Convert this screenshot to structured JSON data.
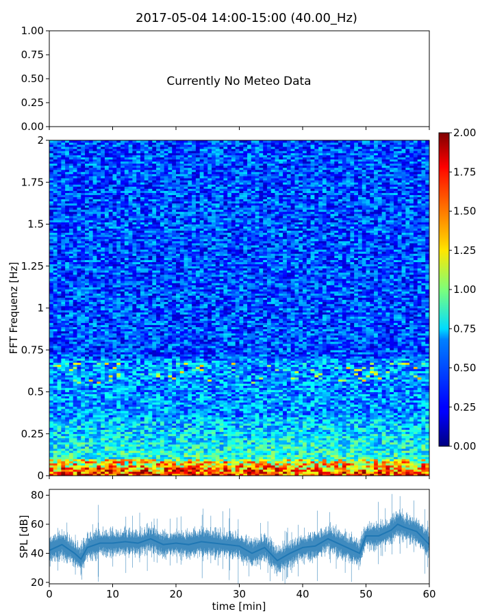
{
  "title": "2017-05-04 14:00-15:00 (40.00_Hz)",
  "chart_data": [
    {
      "type": "line",
      "name": "meteo-panel",
      "message": "Currently No Meteo Data",
      "ylim": [
        0,
        1
      ],
      "yticks": [
        "0.00",
        "0.25",
        "0.50",
        "0.75",
        "1.00"
      ],
      "xlim": [
        0,
        60
      ],
      "xticks": [
        0,
        10,
        20,
        30,
        40,
        50,
        60
      ],
      "show_xtick_labels": false
    },
    {
      "type": "heatmap",
      "name": "spectrogram",
      "ylabel": "FFT Frequenz [Hz]",
      "xlim": [
        0,
        60
      ],
      "ylim": [
        0,
        2
      ],
      "yticks": [
        "0",
        "0.25",
        "0.5",
        "0.75",
        "1",
        "1.25",
        "1.5",
        "1.75",
        "2"
      ],
      "colormap": "jet",
      "colorbar": {
        "range": [
          0,
          2
        ],
        "ticks": [
          "0.00",
          "0.25",
          "0.50",
          "0.75",
          "1.00",
          "1.25",
          "1.50",
          "1.75",
          "2.00"
        ]
      },
      "notes": "high intensity (~1.5-2.0) concentrated below 0.1 Hz across full hour; moderate (~0.7-1.0) between 0.1-0.3 Hz; background ~0.2-0.5 above 0.5 Hz"
    },
    {
      "type": "line",
      "name": "spl",
      "xlabel": "time [min]",
      "ylabel": "SPL [dB]",
      "xlim": [
        0,
        60
      ],
      "ylim": [
        19,
        84
      ],
      "xticks": [
        "0",
        "10",
        "20",
        "30",
        "40",
        "50",
        "60"
      ],
      "yticks": [
        "20",
        "40",
        "60",
        "80"
      ],
      "color": "#1f77b4",
      "x": [
        0,
        2,
        4,
        5,
        6,
        8,
        10,
        12,
        14,
        16,
        18,
        20,
        22,
        24,
        26,
        28,
        30,
        32,
        34,
        36,
        38,
        40,
        42,
        44,
        46,
        48,
        49,
        50,
        52,
        54,
        55,
        56,
        58,
        60
      ],
      "values": [
        42,
        46,
        40,
        36,
        44,
        47,
        47,
        48,
        47,
        50,
        46,
        47,
        46,
        48,
        47,
        46,
        45,
        40,
        44,
        35,
        40,
        44,
        45,
        50,
        46,
        42,
        40,
        52,
        52,
        56,
        60,
        58,
        55,
        46
      ]
    }
  ]
}
